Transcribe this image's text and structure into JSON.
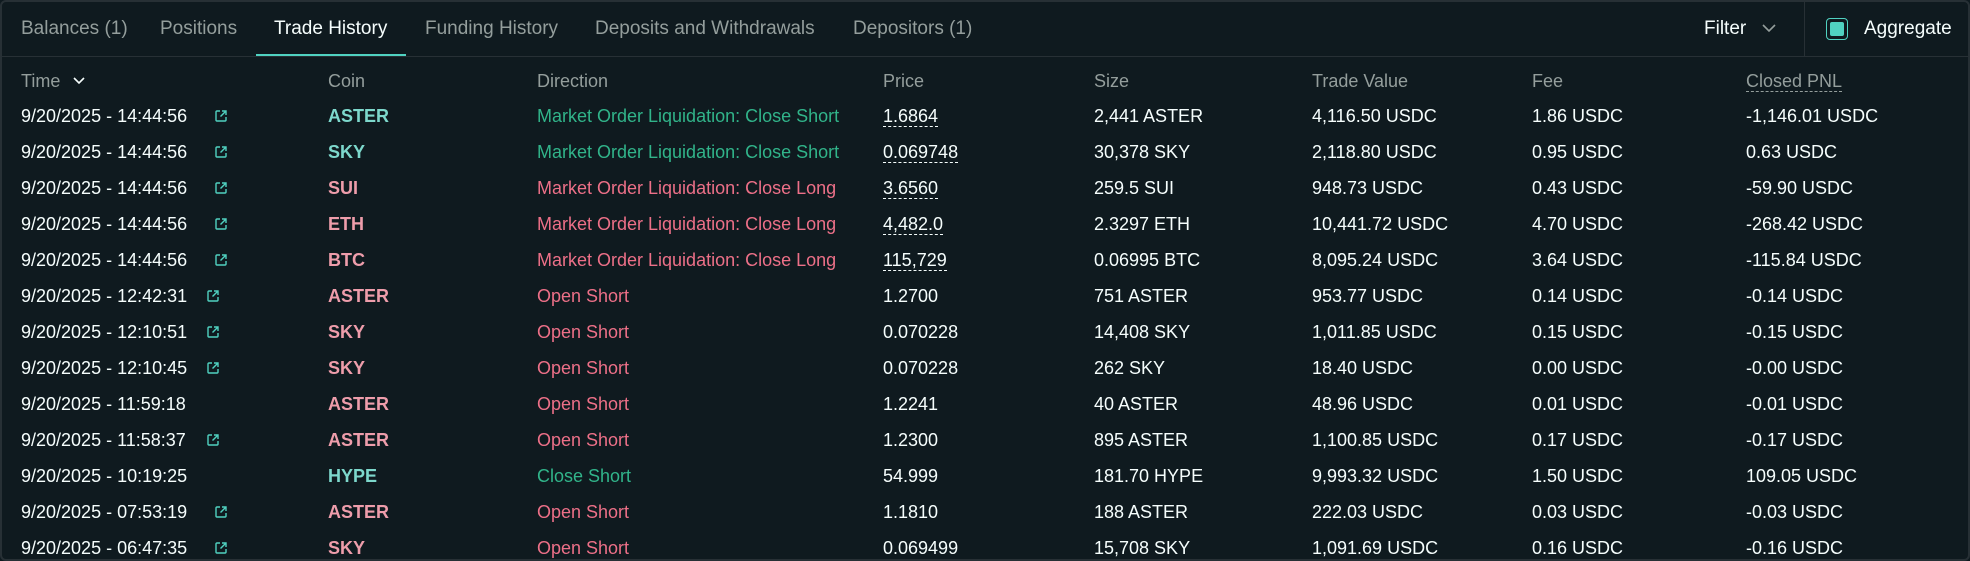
{
  "tabs": [
    {
      "label": "Balances (1)",
      "active": false
    },
    {
      "label": "Positions",
      "active": false
    },
    {
      "label": "Trade History",
      "active": true
    },
    {
      "label": "Funding History",
      "active": false
    },
    {
      "label": "Deposits and Withdrawals",
      "active": false
    },
    {
      "label": "Depositors (1)",
      "active": false
    }
  ],
  "toolbar": {
    "filter_label": "Filter",
    "aggregate_label": "Aggregate",
    "aggregate_checked": true
  },
  "table": {
    "columns": [
      "Time",
      "Coin",
      "Direction",
      "Price",
      "Size",
      "Trade Value",
      "Fee",
      "Closed PNL"
    ],
    "rows": [
      {
        "time": "9/20/2025 - 14:44:56",
        "link": true,
        "coin": "ASTER",
        "side": "long",
        "direction": "Market Order Liquidation: Close Short",
        "dir_color": "green",
        "price": "1.6864",
        "price_dashed": true,
        "size": "2,441 ASTER",
        "trade_value": "4,116.50 USDC",
        "fee": "1.86 USDC",
        "closed_pnl": "-1,146.01 USDC"
      },
      {
        "time": "9/20/2025 - 14:44:56",
        "link": true,
        "coin": "SKY",
        "side": "long",
        "direction": "Market Order Liquidation: Close Short",
        "dir_color": "green",
        "price": "0.069748",
        "price_dashed": true,
        "size": "30,378 SKY",
        "trade_value": "2,118.80 USDC",
        "fee": "0.95 USDC",
        "closed_pnl": "0.63 USDC"
      },
      {
        "time": "9/20/2025 - 14:44:56",
        "link": true,
        "coin": "SUI",
        "side": "short",
        "direction": "Market Order Liquidation: Close Long",
        "dir_color": "red",
        "price": "3.6560",
        "price_dashed": true,
        "size": "259.5 SUI",
        "trade_value": "948.73 USDC",
        "fee": "0.43 USDC",
        "closed_pnl": "-59.90 USDC"
      },
      {
        "time": "9/20/2025 - 14:44:56",
        "link": true,
        "coin": "ETH",
        "side": "short",
        "direction": "Market Order Liquidation: Close Long",
        "dir_color": "red",
        "price": "4,482.0",
        "price_dashed": true,
        "size": "2.3297 ETH",
        "trade_value": "10,441.72 USDC",
        "fee": "4.70 USDC",
        "closed_pnl": "-268.42 USDC"
      },
      {
        "time": "9/20/2025 - 14:44:56",
        "link": true,
        "coin": "BTC",
        "side": "short",
        "direction": "Market Order Liquidation: Close Long",
        "dir_color": "red",
        "price": "115,729",
        "price_dashed": true,
        "size": "0.06995 BTC",
        "trade_value": "8,095.24 USDC",
        "fee": "3.64 USDC",
        "closed_pnl": "-115.84 USDC"
      },
      {
        "time": "9/20/2025 - 12:42:31",
        "link": true,
        "coin": "ASTER",
        "side": "short",
        "direction": "Open Short",
        "dir_color": "red",
        "price": "1.2700",
        "price_dashed": false,
        "size": "751 ASTER",
        "trade_value": "953.77 USDC",
        "fee": "0.14 USDC",
        "closed_pnl": "-0.14 USDC"
      },
      {
        "time": "9/20/2025 - 12:10:51",
        "link": true,
        "coin": "SKY",
        "side": "short",
        "direction": "Open Short",
        "dir_color": "red",
        "price": "0.070228",
        "price_dashed": false,
        "size": "14,408 SKY",
        "trade_value": "1,011.85 USDC",
        "fee": "0.15 USDC",
        "closed_pnl": "-0.15 USDC"
      },
      {
        "time": "9/20/2025 - 12:10:45",
        "link": true,
        "coin": "SKY",
        "side": "short",
        "direction": "Open Short",
        "dir_color": "red",
        "price": "0.070228",
        "price_dashed": false,
        "size": "262 SKY",
        "trade_value": "18.40 USDC",
        "fee": "0.00 USDC",
        "closed_pnl": "-0.00 USDC"
      },
      {
        "time": "9/20/2025 - 11:59:18",
        "link": false,
        "coin": "ASTER",
        "side": "short",
        "direction": "Open Short",
        "dir_color": "red",
        "price": "1.2241",
        "price_dashed": false,
        "size": "40 ASTER",
        "trade_value": "48.96 USDC",
        "fee": "0.01 USDC",
        "closed_pnl": "-0.01 USDC"
      },
      {
        "time": "9/20/2025 - 11:58:37",
        "link": true,
        "coin": "ASTER",
        "side": "short",
        "direction": "Open Short",
        "dir_color": "red",
        "price": "1.2300",
        "price_dashed": false,
        "size": "895 ASTER",
        "trade_value": "1,100.85 USDC",
        "fee": "0.17 USDC",
        "closed_pnl": "-0.17 USDC"
      },
      {
        "time": "9/20/2025 - 10:19:25",
        "link": false,
        "coin": "HYPE",
        "side": "long",
        "direction": "Close Short",
        "dir_color": "green",
        "price": "54.999",
        "price_dashed": false,
        "size": "181.70 HYPE",
        "trade_value": "9,993.32 USDC",
        "fee": "1.50 USDC",
        "closed_pnl": "109.05 USDC"
      },
      {
        "time": "9/20/2025 - 07:53:19",
        "link": true,
        "coin": "ASTER",
        "side": "short",
        "direction": "Open Short",
        "dir_color": "red",
        "price": "1.1810",
        "price_dashed": false,
        "size": "188 ASTER",
        "trade_value": "222.03 USDC",
        "fee": "0.03 USDC",
        "closed_pnl": "-0.03 USDC"
      },
      {
        "time": "9/20/2025 - 06:47:35",
        "link": true,
        "coin": "SKY",
        "side": "short",
        "direction": "Open Short",
        "dir_color": "red",
        "price": "0.069499",
        "price_dashed": false,
        "size": "15,708 SKY",
        "trade_value": "1,091.69 USDC",
        "fee": "0.16 USDC",
        "closed_pnl": "-0.16 USDC"
      }
    ]
  },
  "colors": {
    "background": "#0f1a1f",
    "accent": "#50d2c1",
    "buy_green": "#31b48a",
    "sell_red": "#ed7088"
  }
}
